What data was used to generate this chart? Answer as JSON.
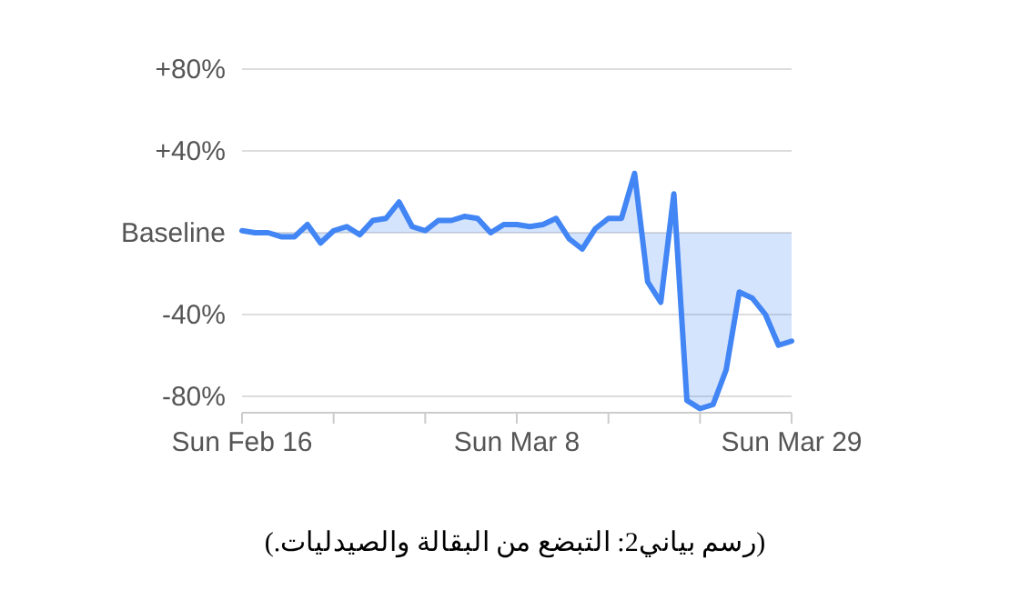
{
  "chart_data": {
    "type": "area",
    "x": [
      "--02-16",
      "--02-17",
      "--02-18",
      "--02-19",
      "--02-20",
      "--02-21",
      "--02-22",
      "--02-23",
      "--02-24",
      "--02-25",
      "--02-26",
      "--02-27",
      "--02-28",
      "--02-29",
      "--03-01",
      "--03-02",
      "--03-03",
      "--03-04",
      "--03-05",
      "--03-06",
      "--03-07",
      "--03-08",
      "--03-09",
      "--03-10",
      "--03-11",
      "--03-12",
      "--03-13",
      "--03-14",
      "--03-15",
      "--03-16",
      "--03-17",
      "--03-18",
      "--03-19",
      "--03-20",
      "--03-21",
      "--03-22",
      "--03-23",
      "--03-24",
      "--03-25",
      "--03-26",
      "--03-27",
      "--03-28",
      "--03-29"
    ],
    "series": [
      {
        "color": "#4285f4",
        "values": [
          1,
          0,
          0,
          -2,
          -2,
          4,
          -5,
          1,
          3,
          -1,
          6,
          7,
          15,
          3,
          1,
          6,
          6,
          8,
          7,
          0,
          4,
          4,
          3,
          4,
          7,
          -3,
          -8,
          2,
          7,
          7,
          29,
          -24,
          -34,
          19,
          -82,
          -86,
          -84,
          -67,
          -29,
          -32,
          -40,
          -55,
          -53
        ]
      }
    ],
    "xlim": [
      "--02-16",
      "--03-29"
    ],
    "xticks": [
      {
        "value": "--02-16",
        "label": "Sun Feb 16"
      },
      {
        "value": "--02-23",
        "label": null
      },
      {
        "value": "--03-01",
        "label": null
      },
      {
        "value": "--03-08",
        "label": "Sun Mar 8"
      },
      {
        "value": "--03-15",
        "label": null
      },
      {
        "value": "--03-22",
        "label": null
      },
      {
        "value": "--03-29",
        "label": "Sun Mar 29"
      }
    ],
    "ylim": [
      -88,
      80
    ],
    "yticks": [
      {
        "value": -80,
        "label": "-80%"
      },
      {
        "value": -40,
        "label": "-40%"
      },
      {
        "value": 0,
        "label": "Baseline"
      },
      {
        "value": 40,
        "label": "+40%"
      },
      {
        "value": 80,
        "label": "+80%"
      }
    ],
    "grid": "y",
    "annotations": [
      "(رسم بياني2: التبضع من البقالة والصيدليات.)"
    ]
  }
}
